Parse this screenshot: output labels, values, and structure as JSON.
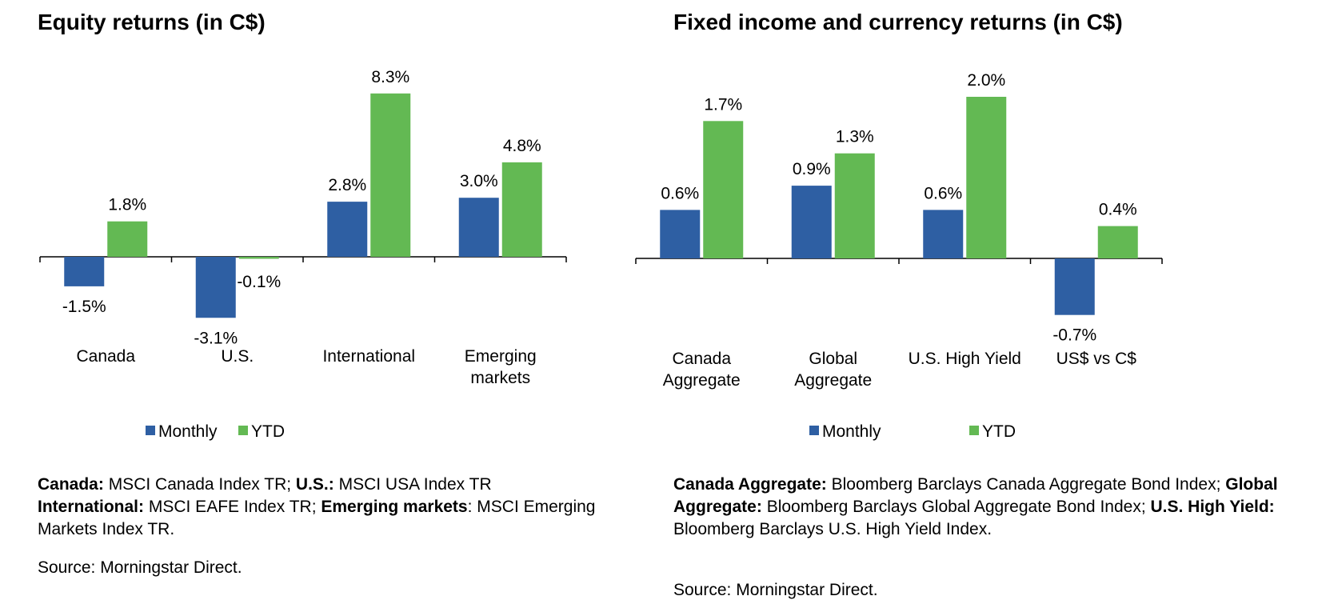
{
  "colors": {
    "monthly": "#2E5FA3",
    "ytd": "#63B953",
    "axis": "#000000"
  },
  "chart_data": [
    {
      "type": "bar",
      "title": "Equity returns (in C$)",
      "categories": [
        "Canada",
        "U.S.",
        "International",
        "Emerging markets"
      ],
      "category_lines": [
        [
          "Canada"
        ],
        [
          "U.S."
        ],
        [
          "International"
        ],
        [
          "Emerging",
          "markets"
        ]
      ],
      "series": [
        {
          "name": "Monthly",
          "values": [
            -1.5,
            -3.1,
            2.8,
            3.0
          ],
          "labels": [
            "-1.5%",
            "-3.1%",
            "2.8%",
            "3.0%"
          ]
        },
        {
          "name": "YTD",
          "values": [
            1.8,
            -0.1,
            8.3,
            4.8
          ],
          "labels": [
            "1.8%",
            "-0.1%",
            "8.3%",
            "4.8%"
          ]
        }
      ],
      "legend": "bottom",
      "grid": false,
      "xlabel": "",
      "ylabel": "",
      "notes": [
        [
          {
            "b": "Canada:"
          },
          {
            "t": " MSCI Canada Index TR; "
          },
          {
            "b": "U.S.:"
          },
          {
            "t": " MSCI USA Index TR"
          }
        ],
        [
          {
            "b": "International:"
          },
          {
            "t": " MSCI EAFE Index TR; "
          },
          {
            "b": "Emerging markets"
          },
          {
            "t": ": MSCI Emerging Markets Index TR."
          }
        ]
      ],
      "source": "Source: Morningstar Direct."
    },
    {
      "type": "bar",
      "title": "Fixed income and currency returns (in C$)",
      "categories": [
        "Canada Aggregate",
        "Global Aggregate",
        "U.S. High Yield",
        "US$ vs C$"
      ],
      "category_lines": [
        [
          "Canada",
          "Aggregate"
        ],
        [
          "Global",
          "Aggregate"
        ],
        [
          "U.S. High Yield"
        ],
        [
          "US$ vs C$"
        ]
      ],
      "series": [
        {
          "name": "Monthly",
          "values": [
            0.6,
            0.9,
            0.6,
            -0.7
          ],
          "labels": [
            "0.6%",
            "0.9%",
            "0.6%",
            "-0.7%"
          ]
        },
        {
          "name": "YTD",
          "values": [
            1.7,
            1.3,
            2.0,
            0.4
          ],
          "labels": [
            "1.7%",
            "1.3%",
            "2.0%",
            "0.4%"
          ]
        }
      ],
      "legend": "bottom",
      "grid": false,
      "xlabel": "",
      "ylabel": "",
      "notes": [
        [
          {
            "b": "Canada Aggregate:"
          },
          {
            "t": " Bloomberg Barclays Canada Aggregate Bond Index; "
          },
          {
            "b": "Global Aggregate:"
          },
          {
            "t": " Bloomberg Barclays Global Aggregate Bond Index; "
          },
          {
            "b": "U.S. High Yield:"
          },
          {
            "t": " Bloomberg Barclays U.S. High Yield Index."
          }
        ]
      ],
      "source": "Source: Morningstar Direct."
    }
  ]
}
